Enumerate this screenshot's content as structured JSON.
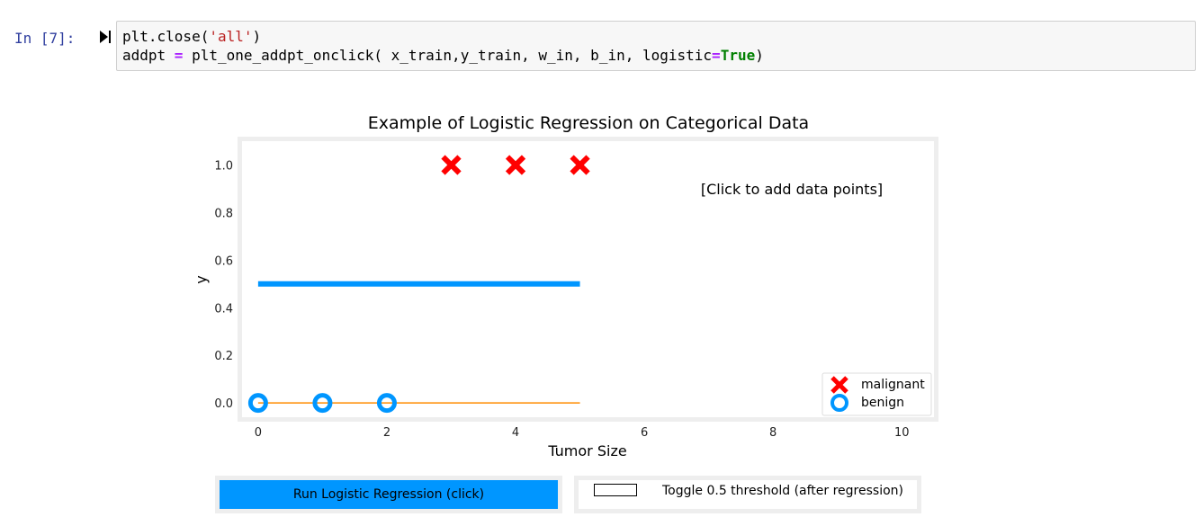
{
  "notebook": {
    "prompt": "In [7]:",
    "code": {
      "line1": {
        "a": "plt.close(",
        "str": "'all'",
        "b": ")"
      },
      "line2": {
        "a": "addpt ",
        "op1": "=",
        "b": " plt_one_addpt_onclick( x_train,y_train, w_in, b_in, logistic",
        "op2": "=",
        "kw": "True",
        "c": ")"
      }
    }
  },
  "chart_data": {
    "type": "scatter",
    "title": "Example of Logistic Regression on Categorical Data",
    "xlabel": "Tumor Size",
    "ylabel": "y",
    "xlim": [
      -0.25,
      10.5
    ],
    "ylim": [
      -0.06,
      1.1
    ],
    "xticks": [
      0,
      2,
      4,
      6,
      8,
      10
    ],
    "yticks": [
      0.0,
      0.2,
      0.4,
      0.6,
      0.8,
      1.0
    ],
    "annotation": "[Click to add data points]",
    "legend_position": "lower-right",
    "series": [
      {
        "name": "malignant",
        "marker": "x",
        "color": "#ff0000",
        "x": [
          3,
          4,
          5
        ],
        "y": [
          1,
          1,
          1
        ]
      },
      {
        "name": "benign",
        "marker": "o",
        "color": "#0096ff",
        "x": [
          0,
          1,
          2
        ],
        "y": [
          0,
          0,
          0
        ]
      }
    ],
    "lines": [
      {
        "x": [
          0,
          5
        ],
        "y": [
          0.5,
          0.5
        ],
        "color": "#0096ff",
        "width": "thick"
      },
      {
        "x": [
          0,
          5
        ],
        "y": [
          0,
          0
        ],
        "color": "#ff8c00",
        "width": "thin"
      }
    ]
  },
  "controls": {
    "run_button_label": "Run Logistic Regression (click)",
    "toggle_label": "Toggle 0.5 threshold (after regression)"
  }
}
